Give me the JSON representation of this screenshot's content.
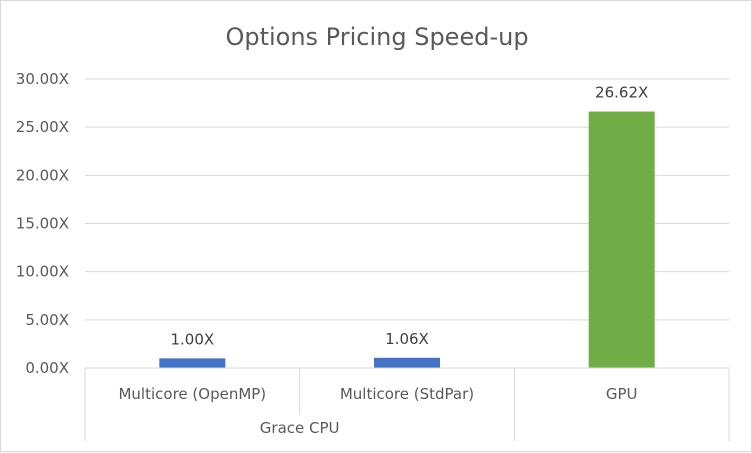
{
  "chart_data": {
    "type": "bar",
    "title": "Options Pricing Speed-up",
    "ylim": [
      0,
      30
    ],
    "ystep": 5,
    "tick_suffix": "X",
    "tick_decimals": 2,
    "gridlines": true,
    "categories": [
      "Multicore (OpenMP)",
      "Multicore (StdPar)",
      "GPU"
    ],
    "groups": [
      {
        "label": "Grace CPU",
        "span": [
          0,
          1
        ]
      },
      {
        "label": "",
        "span": [
          2,
          2
        ]
      }
    ],
    "values": [
      1.0,
      1.06,
      26.62
    ],
    "data_labels": [
      "1.00X",
      "1.06X",
      "26.62X"
    ],
    "colors": [
      "#4472c4",
      "#4472c4",
      "#70ad47"
    ],
    "xlabel": "",
    "ylabel": ""
  }
}
